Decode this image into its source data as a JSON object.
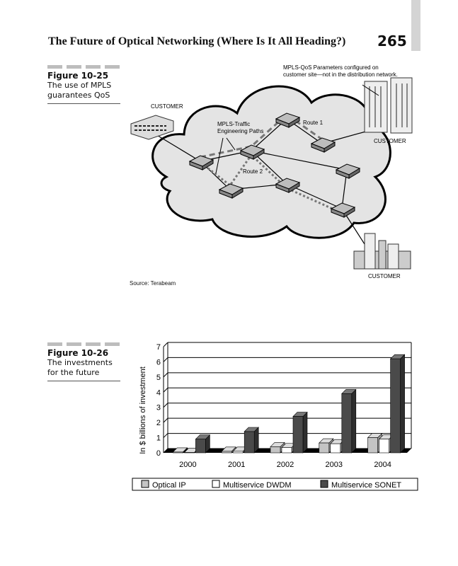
{
  "header": {
    "title": "The Future of Optical Networking (Where Is It All Heading?)",
    "page_number": "265"
  },
  "figure_25": {
    "number": "Figure 10-25",
    "caption": "The use of MPLS guarantees QoS",
    "diagram": {
      "note_line1": "MPLS-QoS Parameters configured on",
      "note_line2": "customer site—not in the distribution network.",
      "customer_left": "CUSTOMER",
      "customer_right": "CUSTOMER",
      "customer_bottom": "CUSTOMER",
      "te_paths_line1": "MPLS-Traffic",
      "te_paths_line2": "Engineering Paths",
      "route1": "Route 1",
      "route2": "Route 2"
    },
    "source": "Source: Terabeam"
  },
  "figure_26": {
    "number": "Figure 10-26",
    "caption": "The investments for the future"
  },
  "chart_data": {
    "type": "bar",
    "categories": [
      "2000",
      "2001",
      "2002",
      "2003",
      "2004"
    ],
    "series": [
      {
        "name": "Optical IP",
        "values": [
          0.05,
          0.1,
          0.4,
          0.65,
          1.0
        ],
        "color": "#c4c4c4"
      },
      {
        "name": "Multiservice DWDM",
        "values": [
          0.02,
          0.1,
          0.35,
          0.6,
          0.9
        ],
        "color": "#ffffff"
      },
      {
        "name": "Multiservice SONET",
        "values": [
          0.9,
          1.4,
          2.4,
          3.9,
          6.2
        ],
        "color": "#4a4a4a"
      }
    ],
    "ylabel": "In $ billions of investment",
    "xlabel": "",
    "ylim": [
      0,
      7
    ],
    "yticks": [
      "0",
      "1",
      "2",
      "3",
      "4",
      "5",
      "6",
      "7"
    ],
    "grid": true,
    "legend": "bottom",
    "style": "3d"
  }
}
